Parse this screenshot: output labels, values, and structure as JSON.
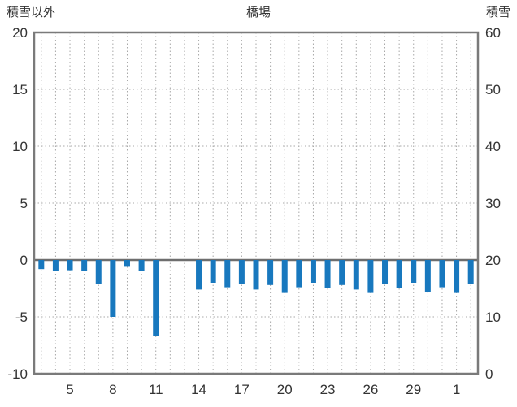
{
  "header": {
    "left_axis_title": "積雪以外",
    "chart_title": "橋場",
    "right_axis_title": "積雪"
  },
  "chart_data": {
    "type": "bar",
    "title": "橋場",
    "grid": true,
    "bar_color": "#1878be",
    "left_axis": {
      "label": "積雪以外",
      "min": -10,
      "max": 20,
      "tick_interval": 5,
      "ticks": [
        20,
        15,
        10,
        5,
        0,
        -5,
        -10
      ]
    },
    "right_axis": {
      "label": "積雪",
      "min": 0,
      "max": 60,
      "tick_interval": 10,
      "ticks": [
        60,
        50,
        40,
        30,
        20,
        10,
        0
      ]
    },
    "x_axis": {
      "days": [
        3,
        4,
        5,
        6,
        7,
        8,
        9,
        10,
        11,
        12,
        13,
        14,
        15,
        16,
        17,
        18,
        19,
        20,
        21,
        22,
        23,
        24,
        25,
        26,
        27,
        28,
        29,
        30,
        31,
        1,
        2
      ],
      "labeled_days": [
        5,
        8,
        11,
        14,
        17,
        20,
        23,
        26,
        29,
        1
      ]
    },
    "series": [
      {
        "name": "積雪以外",
        "axis": "left",
        "color": "#1878be",
        "values": [
          -0.8,
          -1.0,
          -0.9,
          -1.0,
          -2.1,
          -5.0,
          -0.6,
          -1.0,
          -6.7,
          null,
          null,
          -2.6,
          -2.0,
          -2.4,
          -2.1,
          -2.6,
          -2.2,
          -2.9,
          -2.4,
          -2.0,
          -2.5,
          -2.2,
          -2.6,
          -2.9,
          -2.1,
          -2.5,
          -2.0,
          -2.8,
          -2.4,
          -2.9,
          -2.1
        ]
      }
    ]
  }
}
